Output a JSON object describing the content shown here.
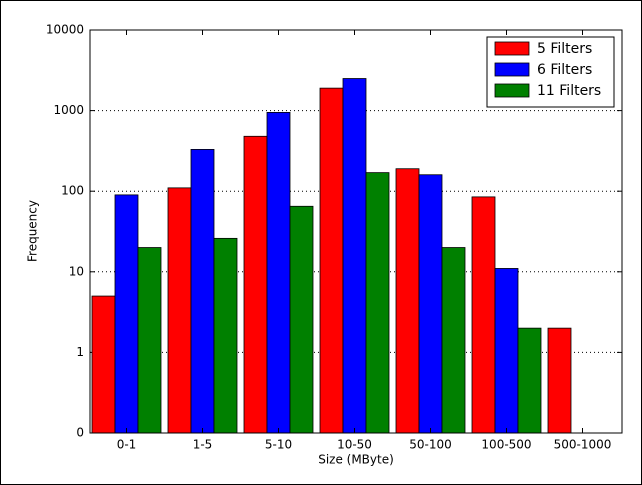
{
  "chart_data": {
    "type": "bar",
    "x_label": "Size (MByte)",
    "y_label": "Frequency",
    "categories": [
      "0-1",
      "1-5",
      "5-10",
      "10-50",
      "50-100",
      "100-500",
      "500-1000"
    ],
    "series": [
      {
        "name": "5 Filters",
        "color": "#ff0000",
        "values": [
          5,
          110,
          480,
          1900,
          190,
          85,
          2
        ]
      },
      {
        "name": "6 Filters",
        "color": "#0000ff",
        "values": [
          90,
          330,
          950,
          2500,
          160,
          11,
          null
        ]
      },
      {
        "name": "11 Filters",
        "color": "#008000",
        "values": [
          20,
          26,
          65,
          170,
          20,
          2,
          null
        ]
      }
    ],
    "log_scale": true,
    "ylim": [
      0.1,
      10000
    ],
    "yticks": [
      {
        "value": 0.1,
        "label": "0"
      },
      1,
      10,
      100,
      1000,
      10000
    ],
    "grid": true,
    "legend": "upper-right"
  }
}
